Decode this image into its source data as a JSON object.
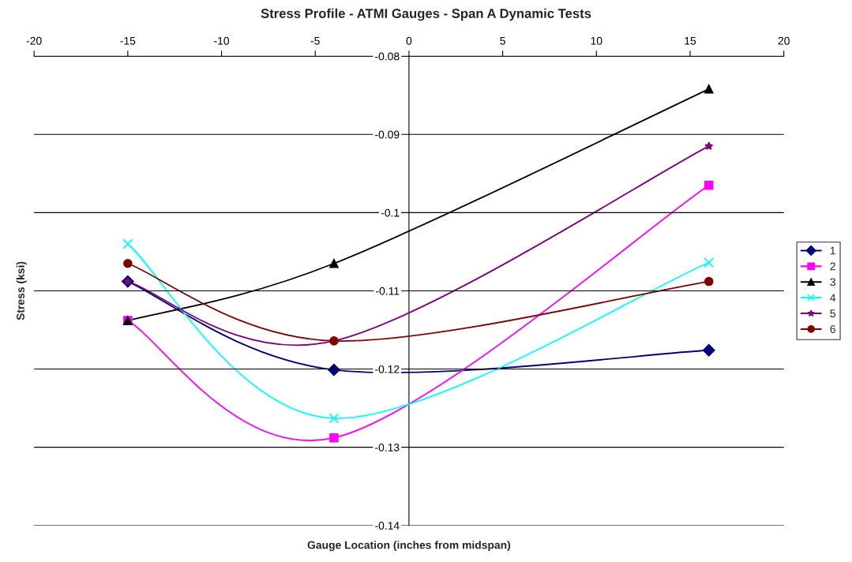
{
  "chart_data": {
    "type": "line",
    "title": "Stress Profile - ATMI Gauges - Span A Dynamic Tests",
    "xlabel": "Gauge Location (inches from midspan)",
    "ylabel": "Stress (ksi)",
    "x": [
      -15,
      -4,
      16
    ],
    "series": [
      {
        "name": "1",
        "color": "#000080",
        "marker": "diamond",
        "values": [
          -0.1088,
          -0.1201,
          -0.1176
        ]
      },
      {
        "name": "2",
        "color": "#ff00ff",
        "marker": "square",
        "values": [
          -0.1138,
          -0.1288,
          -0.0965
        ]
      },
      {
        "name": "3",
        "color": "#000000",
        "marker": "triangle",
        "values": [
          -0.1138,
          -0.1065,
          -0.0842
        ]
      },
      {
        "name": "4",
        "color": "#00ffff",
        "marker": "cross",
        "values": [
          -0.104,
          -0.1263,
          -0.1064
        ]
      },
      {
        "name": "5",
        "color": "#800080",
        "marker": "star",
        "values": [
          -0.1088,
          -0.1164,
          -0.0915
        ]
      },
      {
        "name": "6",
        "color": "#800000",
        "marker": "circle",
        "values": [
          -0.1065,
          -0.1164,
          -0.1088
        ]
      }
    ],
    "xlim": [
      -20,
      20
    ],
    "xticks": [
      -20,
      -15,
      -10,
      -5,
      0,
      5,
      10,
      15,
      20
    ],
    "ylim": [
      -0.14,
      -0.08
    ],
    "yticks": [
      -0.14,
      -0.13,
      -0.12,
      -0.11,
      -0.1,
      -0.09,
      -0.08
    ],
    "grid": "y",
    "legend": "right",
    "line_style": "solid"
  }
}
